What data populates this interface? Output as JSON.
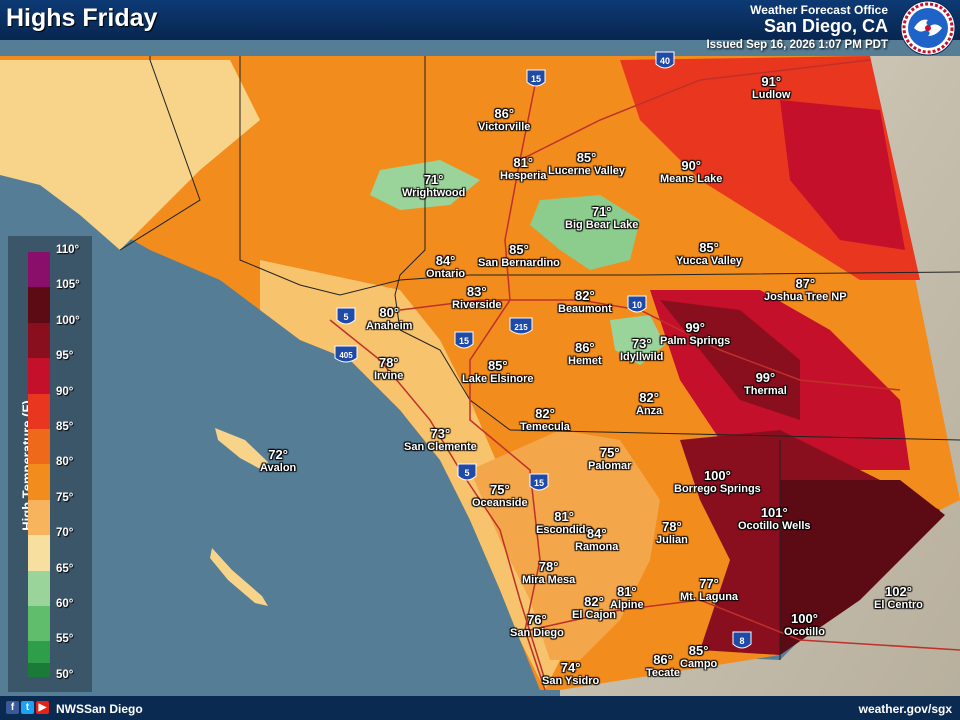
{
  "header": {
    "title": "Highs Friday",
    "office_top": "Weather Forecast Office",
    "office_name": "San Diego, CA",
    "issued": "Issued Sep 16, 2026 1:07 PM PDT"
  },
  "logo": {
    "text": "NATIONAL WEATHER SERVICE"
  },
  "footer": {
    "handle": "NWSSan Diego",
    "website": "weather.gov/sgx",
    "social_icons": [
      "facebook-icon",
      "twitter-icon",
      "youtube-icon"
    ]
  },
  "legend": {
    "title": "High Temperature (F)",
    "labels": [
      "110°",
      "105°",
      "100°",
      "95°",
      "90°",
      "85°",
      "80°",
      "75°",
      "70°",
      "65°",
      "60°",
      "55°",
      "50°"
    ],
    "colors": [
      "#8a0f6b",
      "#5c0a14",
      "#8a0f1e",
      "#c4102a",
      "#e8361f",
      "#ee6a1a",
      "#f28c1c",
      "#f7b45c",
      "#f7dfa0",
      "#9ad49a",
      "#5fbd6c",
      "#2e9e4b",
      "#1a7a38"
    ]
  },
  "interstates": [
    "15",
    "40",
    "5",
    "10",
    "215",
    "405",
    "15",
    "5",
    "15",
    "8"
  ],
  "cities": [
    {
      "temp": "86°",
      "name": "Victorville"
    },
    {
      "temp": "91°",
      "name": "Ludlow"
    },
    {
      "temp": "81°",
      "name": "Hesperia"
    },
    {
      "temp": "85°",
      "name": "Lucerne Valley"
    },
    {
      "temp": "90°",
      "name": "Means Lake"
    },
    {
      "temp": "71°",
      "name": "Wrightwood"
    },
    {
      "temp": "71°",
      "name": "Big Bear Lake"
    },
    {
      "temp": "84°",
      "name": "Ontario"
    },
    {
      "temp": "85°",
      "name": "San Bernardino"
    },
    {
      "temp": "85°",
      "name": "Yucca Valley"
    },
    {
      "temp": "87°",
      "name": "Joshua Tree NP"
    },
    {
      "temp": "83°",
      "name": "Riverside"
    },
    {
      "temp": "82°",
      "name": "Beaumont"
    },
    {
      "temp": "80°",
      "name": "Anaheim"
    },
    {
      "temp": "99°",
      "name": "Palm Springs"
    },
    {
      "temp": "86°",
      "name": "Hemet"
    },
    {
      "temp": "73°",
      "name": "Idyllwild"
    },
    {
      "temp": "78°",
      "name": "Irvine"
    },
    {
      "temp": "85°",
      "name": "Lake Elsinore"
    },
    {
      "temp": "99°",
      "name": "Thermal"
    },
    {
      "temp": "82°",
      "name": "Anza"
    },
    {
      "temp": "82°",
      "name": "Temecula"
    },
    {
      "temp": "73°",
      "name": "San Clemente"
    },
    {
      "temp": "72°",
      "name": "Avalon"
    },
    {
      "temp": "75°",
      "name": "Palomar"
    },
    {
      "temp": "100°",
      "name": "Borrego Springs"
    },
    {
      "temp": "75°",
      "name": "Oceanside"
    },
    {
      "temp": "81°",
      "name": "Escondido"
    },
    {
      "temp": "84°",
      "name": "Ramona"
    },
    {
      "temp": "78°",
      "name": "Julian"
    },
    {
      "temp": "101°",
      "name": "Ocotillo Wells"
    },
    {
      "temp": "78°",
      "name": "Mira Mesa"
    },
    {
      "temp": "102°",
      "name": "El Centro"
    },
    {
      "temp": "81°",
      "name": "Alpine"
    },
    {
      "temp": "77°",
      "name": "Mt. Laguna"
    },
    {
      "temp": "82°",
      "name": "El Cajon"
    },
    {
      "temp": "76°",
      "name": "San Diego"
    },
    {
      "temp": "100°",
      "name": "Ocotillo"
    },
    {
      "temp": "86°",
      "name": "Tecate"
    },
    {
      "temp": "85°",
      "name": "Campo"
    },
    {
      "temp": "74°",
      "name": "San Ysidro"
    }
  ]
}
